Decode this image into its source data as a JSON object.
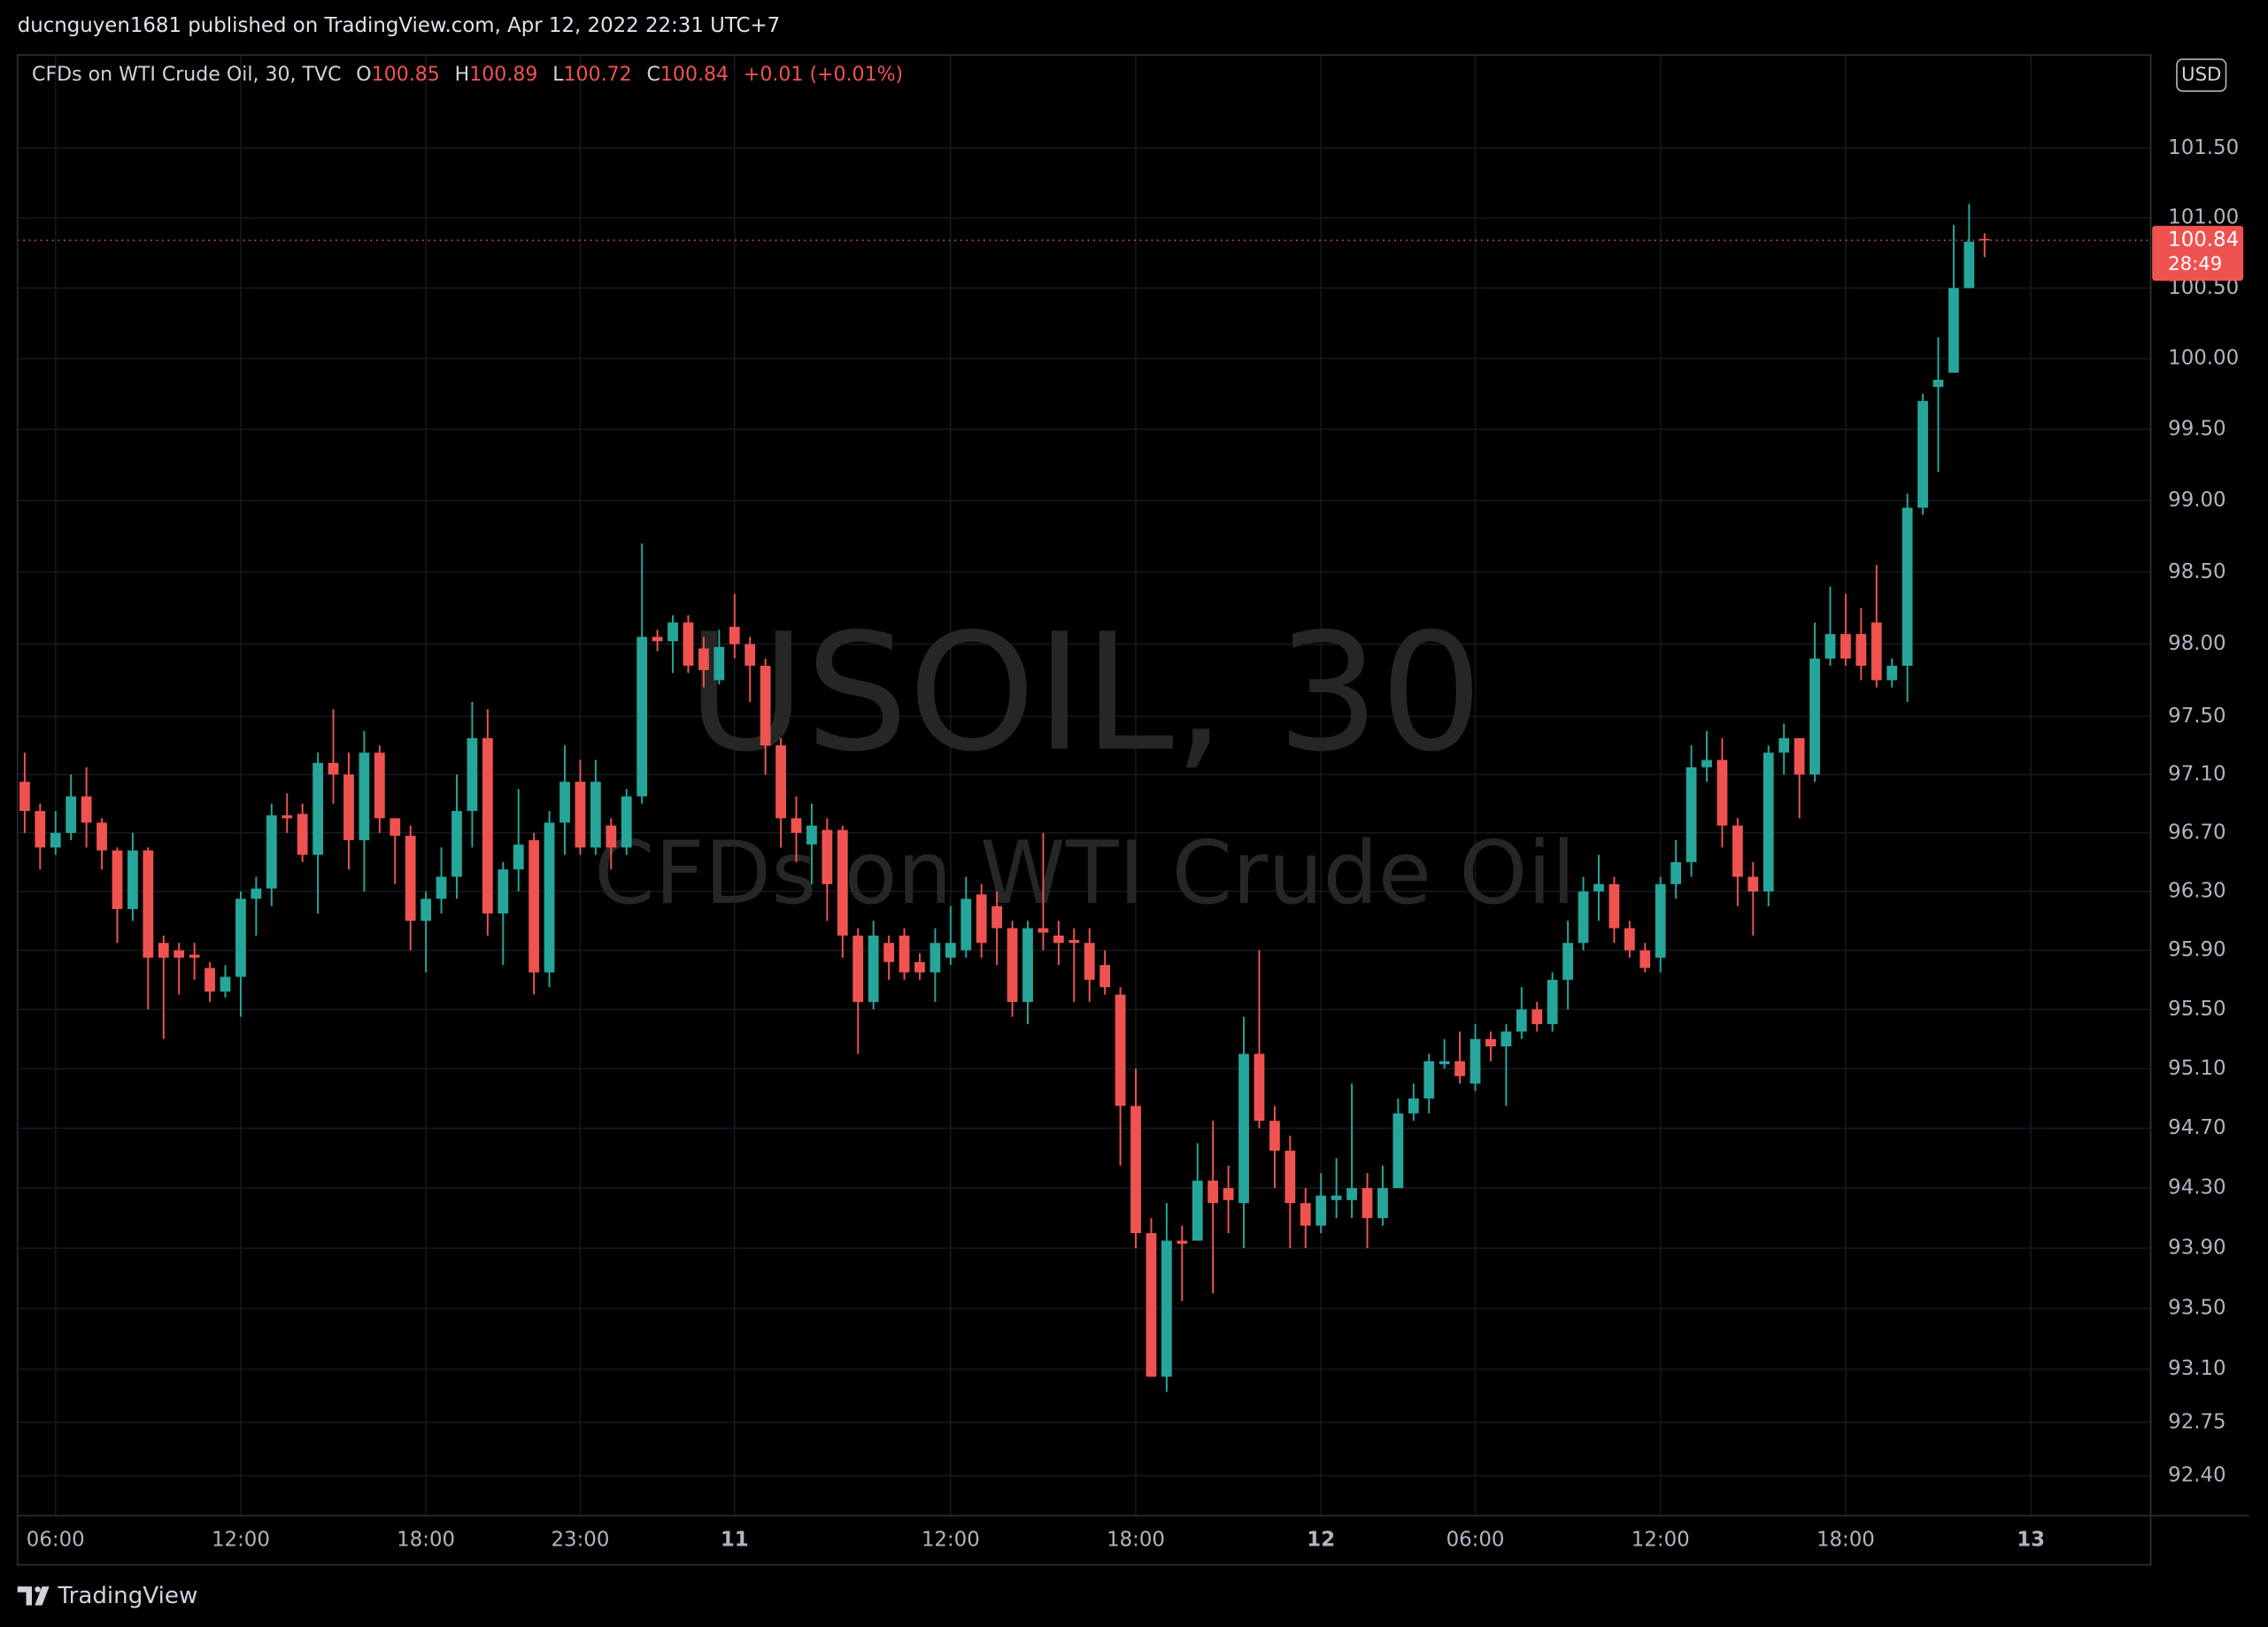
{
  "published": "ducnguyen1681 published on TradingView.com, Apr 12, 2022 22:31 UTC+7",
  "header": {
    "symbol": "CFDs on WTI Crude Oil, 30, TVC",
    "ohlc_labels": [
      "O",
      "H",
      "L",
      "C"
    ],
    "change": "+0.01 (+0.01%)"
  },
  "watermark": {
    "ticker": "USOIL, 30",
    "description": "CFDs on WTI Crude Oil"
  },
  "currency": "USD",
  "countdown": "28:49",
  "brand": "TradingView",
  "chart_data": {
    "type": "candlestick",
    "log": true,
    "grid": true,
    "up_color": "#26a69a",
    "down_color": "#ef5350",
    "categories": [
      null,
      null,
      "06:00",
      null,
      null,
      null,
      null,
      null,
      null,
      null,
      null,
      null,
      null,
      null,
      "12:00",
      null,
      null,
      null,
      null,
      null,
      null,
      null,
      null,
      null,
      null,
      null,
      "18:00",
      null,
      null,
      null,
      null,
      null,
      null,
      null,
      null,
      null,
      "23:00",
      null,
      null,
      null,
      null,
      null,
      null,
      null,
      null,
      null,
      "11",
      null,
      null,
      null,
      null,
      null,
      null,
      null,
      null,
      null,
      null,
      null,
      null,
      null,
      "12:00",
      null,
      null,
      null,
      null,
      null,
      null,
      null,
      null,
      null,
      null,
      null,
      "18:00",
      null,
      null,
      null,
      null,
      null,
      null,
      null,
      null,
      null,
      null,
      null,
      "12",
      null,
      null,
      null,
      null,
      null,
      null,
      null,
      null,
      null,
      "06:00",
      null,
      null,
      null,
      null,
      null,
      null,
      null,
      null,
      null,
      null,
      null,
      "12:00",
      null,
      null,
      null,
      null,
      null,
      null,
      null,
      null,
      null,
      null,
      null,
      "18:00",
      null,
      null,
      null,
      null,
      null,
      null,
      null,
      null,
      null,
      null,
      null,
      "13"
    ],
    "open": [
      97.05,
      96.85,
      96.6,
      96.7,
      96.95,
      96.77,
      96.58,
      96.18,
      96.58,
      95.95,
      95.9,
      95.87,
      95.78,
      95.62,
      95.72,
      96.25,
      96.32,
      96.82,
      96.83,
      96.55,
      97.18,
      97.1,
      96.65,
      97.25,
      96.8,
      96.68,
      96.1,
      96.25,
      96.4,
      96.85,
      97.35,
      96.15,
      96.45,
      96.65,
      95.75,
      96.77,
      97.05,
      96.6,
      96.75,
      96.6,
      96.95,
      98.05,
      98.02,
      98.15,
      97.97,
      97.75,
      98.12,
      98.0,
      97.85,
      97.3,
      96.8,
      96.62,
      96.72,
      96.72,
      96.0,
      95.55,
      95.95,
      96.0,
      95.82,
      95.75,
      95.85,
      95.9,
      96.28,
      96.2,
      96.05,
      95.55,
      96.05,
      96.0,
      95.97,
      95.95,
      95.8,
      95.6,
      94.85,
      94.0,
      93.05,
      93.95,
      93.95,
      94.35,
      94.3,
      94.2,
      95.2,
      94.75,
      94.55,
      94.2,
      94.05,
      94.22,
      94.22,
      94.3,
      94.1,
      94.3,
      94.8,
      94.9,
      95.13,
      95.15,
      95.0,
      95.3,
      95.25,
      95.35,
      95.5,
      95.4,
      95.7,
      95.95,
      96.3,
      96.35,
      96.05,
      95.9,
      95.85,
      96.35,
      96.5,
      97.15,
      97.2,
      96.75,
      96.4,
      96.3,
      97.25,
      97.35,
      97.1,
      97.9,
      98.07,
      98.07,
      98.15,
      97.75,
      97.85,
      98.95,
      99.8,
      99.9,
      100.5,
      100.85,
      null,
      null,
      null
    ],
    "high": [
      97.25,
      96.9,
      96.85,
      97.1,
      97.15,
      96.8,
      96.6,
      96.7,
      96.6,
      96.0,
      95.95,
      95.95,
      95.82,
      95.8,
      96.3,
      96.4,
      96.9,
      96.97,
      96.9,
      97.25,
      97.55,
      97.25,
      97.4,
      97.3,
      96.8,
      96.75,
      96.3,
      96.6,
      97.1,
      97.6,
      97.55,
      96.5,
      97.0,
      96.7,
      96.85,
      97.3,
      97.2,
      97.2,
      96.8,
      97.0,
      98.7,
      98.1,
      98.2,
      98.2,
      98.05,
      98.1,
      98.35,
      98.05,
      97.9,
      97.35,
      96.95,
      96.9,
      96.8,
      96.75,
      96.05,
      96.1,
      96.0,
      96.05,
      95.88,
      96.05,
      96.2,
      96.4,
      96.35,
      96.3,
      96.1,
      96.1,
      96.7,
      96.1,
      96.05,
      96.05,
      95.9,
      95.65,
      95.1,
      94.1,
      94.2,
      94.05,
      94.6,
      94.75,
      94.45,
      95.45,
      95.9,
      94.85,
      94.65,
      94.3,
      94.4,
      94.5,
      95.0,
      94.4,
      94.45,
      94.9,
      95.0,
      95.2,
      95.3,
      95.35,
      95.4,
      95.35,
      95.4,
      95.65,
      95.55,
      95.75,
      96.1,
      96.4,
      96.55,
      96.4,
      96.1,
      95.95,
      96.4,
      96.65,
      97.3,
      97.4,
      97.35,
      96.8,
      96.5,
      97.3,
      97.45,
      97.35,
      98.15,
      98.4,
      98.35,
      98.25,
      98.55,
      97.9,
      99.05,
      99.75,
      100.15,
      100.95,
      101.1,
      100.89,
      null,
      null,
      null
    ],
    "low": [
      96.7,
      96.45,
      96.55,
      96.65,
      96.6,
      96.45,
      95.95,
      96.1,
      95.5,
      95.3,
      95.6,
      95.7,
      95.55,
      95.58,
      95.45,
      96.0,
      96.2,
      96.7,
      96.5,
      96.15,
      96.9,
      96.45,
      96.3,
      96.7,
      96.35,
      95.9,
      95.75,
      96.15,
      96.25,
      96.6,
      96.0,
      95.8,
      96.3,
      95.6,
      95.65,
      96.55,
      96.55,
      96.55,
      96.45,
      96.55,
      96.9,
      97.95,
      97.8,
      97.8,
      97.7,
      97.72,
      97.9,
      97.6,
      97.1,
      96.6,
      96.5,
      96.35,
      96.1,
      95.85,
      95.2,
      95.5,
      95.7,
      95.7,
      95.7,
      95.55,
      95.8,
      95.85,
      95.85,
      95.8,
      95.45,
      95.4,
      95.9,
      95.8,
      95.55,
      95.55,
      95.6,
      94.45,
      93.9,
      93.05,
      92.95,
      93.55,
      93.95,
      93.6,
      94.0,
      93.9,
      94.7,
      94.3,
      93.9,
      93.9,
      94.0,
      94.1,
      94.1,
      93.9,
      94.05,
      94.3,
      94.75,
      94.8,
      95.1,
      95.0,
      94.95,
      95.15,
      94.85,
      95.3,
      95.35,
      95.35,
      95.5,
      95.9,
      96.1,
      95.95,
      95.85,
      95.75,
      95.75,
      96.25,
      96.4,
      97.05,
      96.6,
      96.2,
      96.0,
      96.2,
      97.1,
      96.8,
      97.05,
      97.85,
      97.85,
      97.75,
      97.7,
      97.7,
      97.6,
      98.9,
      99.2,
      99.9,
      100.5,
      100.72,
      null,
      null,
      null
    ],
    "close": [
      96.85,
      96.6,
      96.7,
      96.95,
      96.77,
      96.58,
      96.18,
      96.58,
      95.85,
      95.85,
      95.85,
      95.85,
      95.62,
      95.72,
      96.25,
      96.32,
      96.82,
      96.8,
      96.55,
      97.18,
      97.1,
      96.65,
      97.25,
      96.8,
      96.68,
      96.1,
      96.25,
      96.4,
      96.85,
      97.35,
      96.15,
      96.45,
      96.62,
      95.75,
      96.77,
      97.05,
      96.6,
      97.05,
      96.6,
      96.95,
      98.05,
      98.02,
      98.15,
      97.85,
      97.82,
      97.98,
      98.0,
      97.85,
      97.3,
      96.8,
      96.7,
      96.75,
      96.35,
      96.0,
      95.55,
      96.0,
      95.82,
      95.75,
      95.75,
      95.95,
      95.95,
      96.25,
      95.95,
      96.05,
      95.55,
      96.05,
      96.02,
      95.95,
      95.95,
      95.7,
      95.65,
      94.85,
      94.0,
      93.05,
      93.95,
      93.93,
      94.35,
      94.2,
      94.22,
      95.2,
      94.75,
      94.55,
      94.2,
      94.05,
      94.25,
      94.25,
      94.3,
      94.1,
      94.3,
      94.8,
      94.9,
      95.15,
      95.15,
      95.05,
      95.3,
      95.25,
      95.35,
      95.5,
      95.4,
      95.7,
      95.95,
      96.3,
      96.35,
      96.05,
      95.9,
      95.78,
      96.35,
      96.5,
      97.15,
      97.2,
      96.75,
      96.4,
      96.3,
      97.25,
      97.35,
      97.1,
      97.9,
      98.07,
      97.9,
      97.85,
      97.75,
      97.85,
      98.95,
      99.7,
      99.85,
      100.5,
      100.83,
      100.84,
      null,
      null,
      null
    ],
    "ylim": [
      92.14,
      102.15
    ],
    "yticks": [
      {
        "value": 92.4,
        "label": "92.40"
      },
      92.75,
      {
        "value": 93.1,
        "label": "93.10"
      },
      {
        "value": 93.5,
        "label": "93.50"
      },
      {
        "value": 93.9,
        "label": "93.90"
      },
      {
        "value": 94.3,
        "label": "94.30"
      },
      {
        "value": 94.7,
        "label": "94.70"
      },
      {
        "value": 95.1,
        "label": "95.10"
      },
      {
        "value": 95.5,
        "label": "95.50"
      },
      {
        "value": 95.9,
        "label": "95.90"
      },
      {
        "value": 96.3,
        "label": "96.30"
      },
      {
        "value": 96.7,
        "label": "96.70"
      },
      {
        "value": 97.1,
        "label": "97.10"
      },
      {
        "value": 97.5,
        "label": "97.50"
      },
      {
        "value": 98,
        "label": "98.00"
      },
      {
        "value": 98.5,
        "label": "98.50"
      },
      {
        "value": 99,
        "label": "99.00"
      },
      {
        "value": 99.5,
        "label": "99.50"
      },
      {
        "value": 100,
        "label": "100.00"
      },
      {
        "value": 100.5,
        "label": "100.50"
      },
      {
        "value": 101,
        "label": "101.00"
      },
      {
        "value": 101.5,
        "label": "101.50"
      }
    ]
  }
}
